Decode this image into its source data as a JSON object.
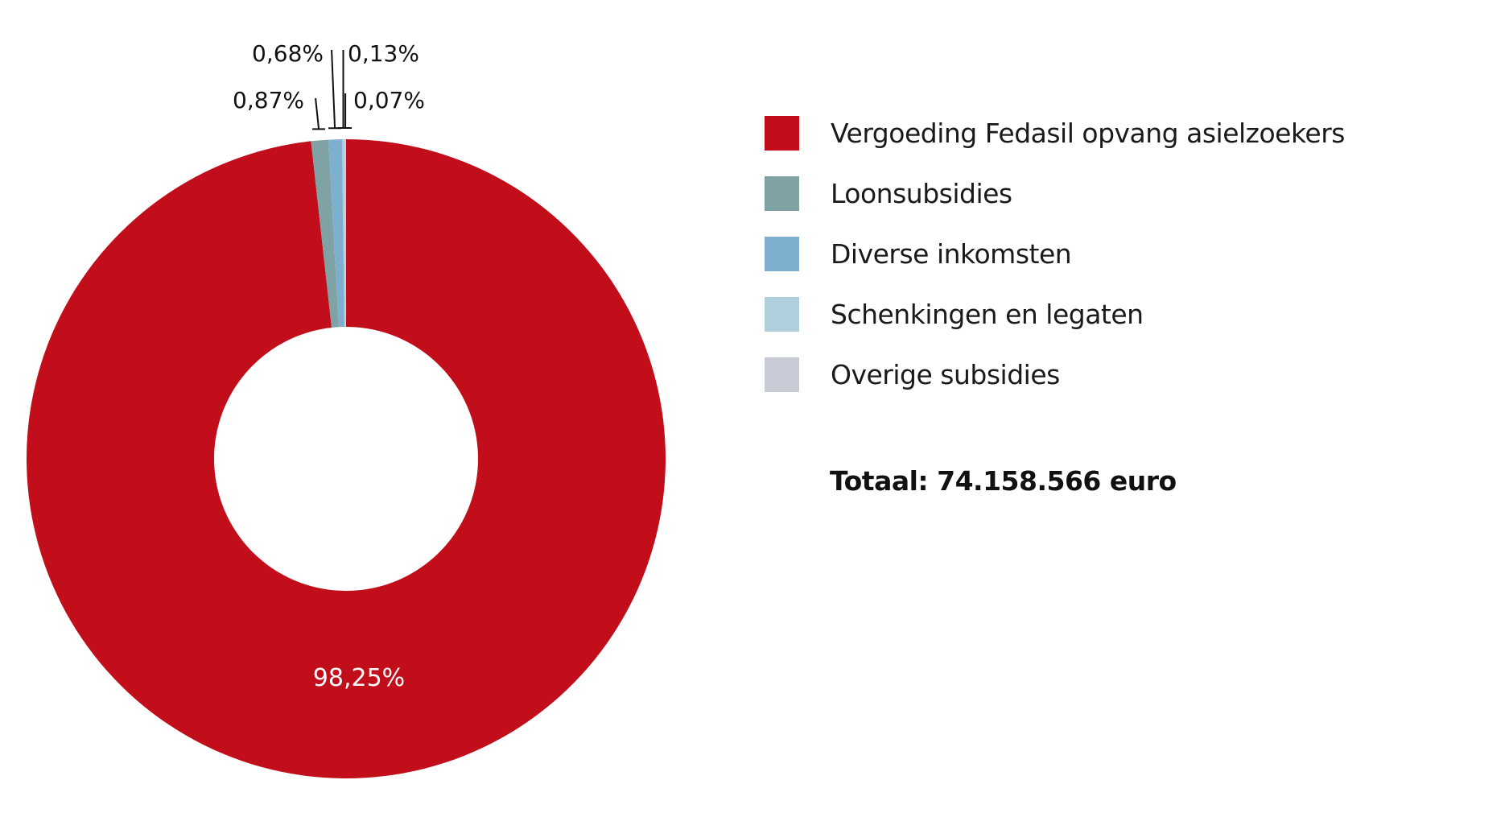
{
  "chart_data": {
    "type": "pie",
    "donut": true,
    "categories": [
      "Vergoeding Fedasil opvang asielzoekers",
      "Loonsubsidies",
      "Diverse inkomsten",
      "Schenkingen en legaten",
      "Overige subsidies"
    ],
    "values": [
      98.25,
      0.87,
      0.68,
      0.13,
      0.07
    ],
    "data_labels": [
      "98,25%",
      "0,87%",
      "0,68%",
      "0,13%",
      "0,07%"
    ],
    "colors": [
      "#c10e1a",
      "#7fa2a5",
      "#7eafcf",
      "#aecfdb",
      "#c9cbd7"
    ],
    "legend_placement": "right",
    "annotation": "Totaal: 74.158.566 euro"
  }
}
